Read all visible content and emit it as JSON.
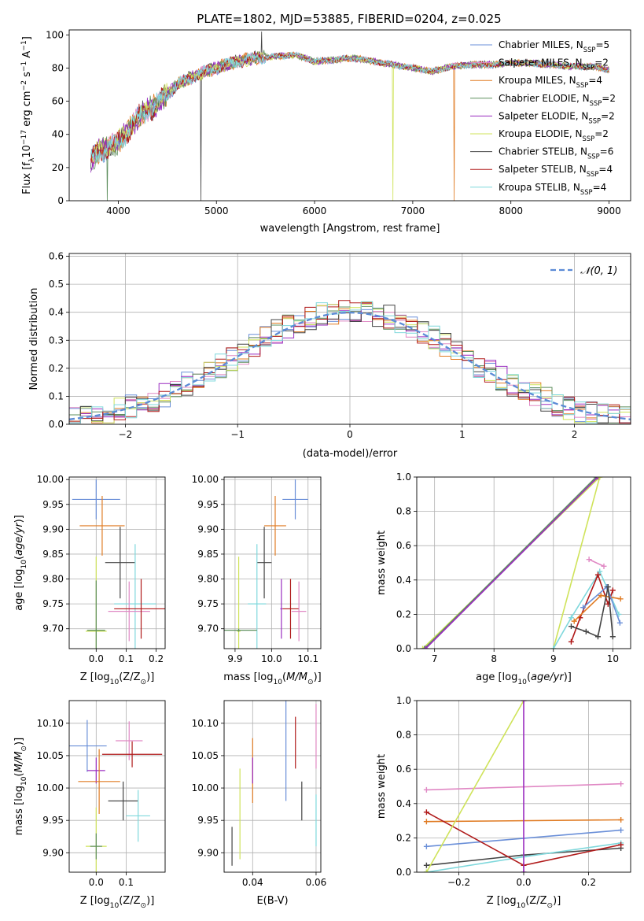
{
  "figure_title": "PLATE=1802, MJD=53885, FIBERID=0204, z=0.025",
  "models": [
    {
      "name": "Chabrier MILES",
      "nssp": "5",
      "color": "#6a8fd8"
    },
    {
      "name": "Salpeter MILES",
      "nssp": "2",
      "color": "#e088c4"
    },
    {
      "name": "Kroupa MILES",
      "nssp": "4",
      "color": "#e07b23"
    },
    {
      "name": "Chabrier ELODIE",
      "nssp": "2",
      "color": "#5e8f5e"
    },
    {
      "name": "Salpeter ELODIE",
      "nssp": "2",
      "color": "#9a2cc0"
    },
    {
      "name": "Kroupa ELODIE",
      "nssp": "2",
      "color": "#cfe35a"
    },
    {
      "name": "Chabrier STELIB",
      "nssp": "6",
      "color": "#444444"
    },
    {
      "name": "Salpeter STELIB",
      "nssp": "4",
      "color": "#b01a1a"
    },
    {
      "name": "Kroupa STELIB",
      "nssp": "4",
      "color": "#7fd8dc"
    }
  ],
  "chart_data": [
    {
      "id": "spectrum",
      "type": "line",
      "xlabel": "wavelength [Angstrom, rest frame]",
      "ylabel": "Flux [f_λ10^-17 erg cm^-2 s^-1 A^-1]",
      "xlim": [
        3500,
        9220
      ],
      "ylim": [
        0,
        103
      ],
      "xticks": [
        4000,
        5000,
        6000,
        7000,
        8000,
        9000
      ],
      "yticks": [
        0,
        20,
        40,
        60,
        80,
        100
      ],
      "continuum": {
        "x": [
          3700,
          3800,
          3900,
          4000,
          4100,
          4200,
          4300,
          4400,
          4500,
          4600,
          4800,
          5000,
          5200,
          5400,
          5600,
          5800,
          6000,
          6200,
          6400,
          6600,
          6800,
          7000,
          7200,
          7400,
          7600,
          7800,
          8000,
          8200,
          8400,
          8600,
          8800,
          9000
        ],
        "y": [
          22,
          30,
          32,
          35,
          42,
          50,
          55,
          58,
          64,
          70,
          76,
          80,
          84,
          86,
          87,
          88,
          84,
          85,
          86,
          84,
          82,
          80,
          78,
          81,
          82,
          82,
          83,
          83,
          82,
          81,
          81,
          79
        ]
      },
      "spikes": [
        {
          "x": 3890,
          "y": 0
        },
        {
          "x": 4840,
          "y": 0
        },
        {
          "x": 5460,
          "y": 102
        },
        {
          "x": 6800,
          "y": 0
        },
        {
          "x": 7420,
          "y": 0
        }
      ],
      "legend": "upper-right"
    },
    {
      "id": "residuals",
      "type": "histogram",
      "xlabel": "(data-model)/error",
      "ylabel": "Normed distribution",
      "xlim": [
        -2.5,
        2.5
      ],
      "ylim": [
        0,
        0.61
      ],
      "xticks": [
        -2,
        -1,
        0,
        1,
        2
      ],
      "yticks": [
        0,
        0.1,
        0.2,
        0.3,
        0.4,
        0.5,
        0.6
      ],
      "bin_width": 0.1,
      "reference_label": "𝒩(0, 1)",
      "grid": true
    },
    {
      "id": "age-vs-Z",
      "type": "scatter",
      "xlabel": "Z [log10(Z/Z⊙)]",
      "ylabel": "age [log10(age/yr)]",
      "xlim": [
        -0.09,
        0.23
      ],
      "ylim": [
        9.66,
        10.005
      ],
      "xticks": [
        0.0,
        0.1,
        0.2
      ],
      "yticks": [
        9.7,
        9.75,
        9.8,
        9.85,
        9.9,
        9.95,
        10.0
      ],
      "points": [
        {
          "model": 0,
          "x": 0.0,
          "y": 9.96,
          "xerr": 0.08,
          "yerr": 0.04
        },
        {
          "model": 2,
          "x": 0.02,
          "y": 9.907,
          "xerr": 0.075,
          "yerr": 0.06
        },
        {
          "model": 6,
          "x": 0.08,
          "y": 9.833,
          "xerr": 0.05,
          "yerr": 0.072
        },
        {
          "model": 8,
          "x": 0.13,
          "y": 9.75,
          "xerr": 0.07,
          "yerr": 0.12
        },
        {
          "model": 1,
          "x": 0.11,
          "y": 9.735,
          "xerr": 0.07,
          "yerr": 0.06
        },
        {
          "model": 7,
          "x": 0.15,
          "y": 9.74,
          "xerr": 0.09,
          "yerr": 0.06
        },
        {
          "model": 5,
          "x": 0.0,
          "y": 9.695,
          "xerr": 0.035,
          "yerr": 0.15
        },
        {
          "model": 3,
          "x": 0.0,
          "y": 9.697,
          "xerr": 0.03,
          "yerr": 0.1
        }
      ]
    },
    {
      "id": "age-vs-mass",
      "type": "scatter",
      "xlabel": "mass [log10(M/M⊙)]",
      "ylabel": "",
      "xlim": [
        9.87,
        10.135
      ],
      "ylim": [
        9.66,
        10.005
      ],
      "xticks": [
        9.9,
        10.0,
        10.1
      ],
      "yticks": [
        9.7,
        9.75,
        9.8,
        9.85,
        9.9,
        9.95,
        10.0
      ],
      "points": [
        {
          "model": 0,
          "x": 10.065,
          "y": 9.96,
          "xerr": 0.035,
          "yerr": 0.04
        },
        {
          "model": 2,
          "x": 10.01,
          "y": 9.907,
          "xerr": 0.03,
          "yerr": 0.06
        },
        {
          "model": 6,
          "x": 9.98,
          "y": 9.833,
          "xerr": 0.02,
          "yerr": 0.072
        },
        {
          "model": 8,
          "x": 9.96,
          "y": 9.75,
          "xerr": 0.025,
          "yerr": 0.12
        },
        {
          "model": 1,
          "x": 10.075,
          "y": 9.735,
          "xerr": 0.02,
          "yerr": 0.06
        },
        {
          "model": 7,
          "x": 10.052,
          "y": 9.74,
          "xerr": 0.022,
          "yerr": 0.06
        },
        {
          "model": 4,
          "x": 10.027,
          "y": 9.74,
          "xerr": 0.003,
          "yerr": 0.06
        },
        {
          "model": 5,
          "x": 9.91,
          "y": 9.695,
          "xerr": 0.005,
          "yerr": 0.15
        },
        {
          "model": 3,
          "x": 9.91,
          "y": 9.697,
          "xerr": 0.05,
          "yerr": 0.003
        }
      ]
    },
    {
      "id": "mass-weight-vs-age",
      "type": "line",
      "xlabel": "age [log10(age/yr)]",
      "ylabel": "mass weight",
      "xlim": [
        6.7,
        10.3
      ],
      "ylim": [
        0,
        1.0
      ],
      "xticks": [
        7,
        8,
        9,
        10
      ],
      "yticks": [
        0,
        0.2,
        0.4,
        0.6,
        0.8,
        1.0
      ],
      "series": [
        {
          "model": 5,
          "x": [
            6.8,
            9.78
          ],
          "y": [
            0,
            1.0
          ]
        },
        {
          "model": 3,
          "x": [
            6.83,
            9.72
          ],
          "y": [
            0,
            1.0
          ]
        },
        {
          "model": 4,
          "x": [
            6.85,
            9.75
          ],
          "y": [
            0,
            1.0
          ]
        },
        {
          "model": 5,
          "x": [
            9.0,
            9.78
          ],
          "y": [
            0,
            1.0
          ]
        },
        {
          "model": 1,
          "x": [
            9.6,
            9.85
          ],
          "y": [
            0.52,
            0.48
          ]
        },
        {
          "model": 8,
          "x": [
            9.0,
            9.3,
            9.78,
            10.1
          ],
          "y": [
            0.0,
            0.18,
            0.45,
            0.2
          ]
        },
        {
          "model": 7,
          "x": [
            9.3,
            9.45,
            9.75,
            9.92,
            10.0
          ],
          "y": [
            0.04,
            0.18,
            0.43,
            0.26,
            0.34
          ]
        },
        {
          "model": 2,
          "x": [
            9.35,
            9.8,
            10.13
          ],
          "y": [
            0.16,
            0.31,
            0.29
          ]
        },
        {
          "model": 0,
          "x": [
            9.5,
            9.9,
            10.12
          ],
          "y": [
            0.24,
            0.36,
            0.15
          ]
        },
        {
          "model": 6,
          "x": [
            9.3,
            9.55,
            9.75,
            9.92,
            10.0
          ],
          "y": [
            0.13,
            0.1,
            0.07,
            0.36,
            0.07
          ]
        }
      ]
    },
    {
      "id": "mass-vs-Z",
      "type": "scatter",
      "xlabel": "Z [log10(Z/Z⊙)]",
      "ylabel": "mass [log10(M/M⊙)]",
      "xlim": [
        -0.09,
        0.23
      ],
      "ylim": [
        9.87,
        10.135
      ],
      "xticks": [
        0.0,
        0.1
      ],
      "yticks": [
        9.9,
        9.95,
        10.0,
        10.05,
        10.1
      ],
      "points": [
        {
          "model": 0,
          "x": -0.03,
          "y": 10.065,
          "xerr": 0.065,
          "yerr": 0.04
        },
        {
          "model": 1,
          "x": 0.11,
          "y": 10.073,
          "xerr": 0.045,
          "yerr": 0.03
        },
        {
          "model": 4,
          "x": 0.0,
          "y": 10.027,
          "xerr": 0.03,
          "yerr": 0.02
        },
        {
          "model": 7,
          "x": 0.12,
          "y": 10.052,
          "xerr": 0.1,
          "yerr": 0.02
        },
        {
          "model": 2,
          "x": 0.01,
          "y": 10.01,
          "xerr": 0.07,
          "yerr": 0.05
        },
        {
          "model": 6,
          "x": 0.09,
          "y": 9.98,
          "xerr": 0.05,
          "yerr": 0.03
        },
        {
          "model": 8,
          "x": 0.14,
          "y": 9.957,
          "xerr": 0.04,
          "yerr": 0.04
        },
        {
          "model": 5,
          "x": 0.0,
          "y": 9.91,
          "xerr": 0.035,
          "yerr": 0.06
        },
        {
          "model": 3,
          "x": 0.0,
          "y": 9.91,
          "xerr": 0.02,
          "yerr": 0.02
        }
      ]
    },
    {
      "id": "mass-vs-EBV",
      "type": "scatter",
      "xlabel": "E(B-V)",
      "ylabel": "",
      "xlim": [
        0.031,
        0.0615
      ],
      "ylim": [
        9.87,
        10.135
      ],
      "xticks": [
        0.04,
        0.06
      ],
      "yticks": [
        9.9,
        9.95,
        10.0,
        10.05,
        10.1
      ],
      "points": [
        {
          "model": 6,
          "x": 0.0335,
          "y": 9.91,
          "xerr": 0,
          "yerr": 0.03
        },
        {
          "model": 5,
          "x": 0.036,
          "y": 9.96,
          "xerr": 0,
          "yerr": 0.07
        },
        {
          "model": 2,
          "x": 0.04,
          "y": 10.027,
          "xerr": 0,
          "yerr": 0.05
        },
        {
          "model": 4,
          "x": 0.04,
          "y": 10.027,
          "xerr": 0,
          "yerr": 0.02
        },
        {
          "model": 0,
          "x": 0.0505,
          "y": 10.06,
          "xerr": 0,
          "yerr": 0.08
        },
        {
          "model": 7,
          "x": 0.0535,
          "y": 10.07,
          "xerr": 0,
          "yerr": 0.04
        },
        {
          "model": 6,
          "x": 0.0555,
          "y": 9.98,
          "xerr": 0,
          "yerr": 0.03
        },
        {
          "model": 1,
          "x": 0.06,
          "y": 10.08,
          "xerr": 0,
          "yerr": 0.05
        },
        {
          "model": 8,
          "x": 0.06,
          "y": 9.95,
          "xerr": 0,
          "yerr": 0.04
        }
      ]
    },
    {
      "id": "mass-weight-vs-Z",
      "type": "line",
      "xlabel": "Z [log10(Z/Z⊙)]",
      "ylabel": "mass weight",
      "xlim": [
        -0.33,
        0.33
      ],
      "ylim": [
        0,
        1.0
      ],
      "xticks": [
        -0.2,
        0.0,
        0.2
      ],
      "yticks": [
        0,
        0.2,
        0.4,
        0.6,
        0.8,
        1.0
      ],
      "series": [
        {
          "model": 1,
          "x": [
            -0.3,
            0.3
          ],
          "y": [
            0.48,
            0.515
          ]
        },
        {
          "model": 2,
          "x": [
            -0.3,
            0.3
          ],
          "y": [
            0.295,
            0.305
          ]
        },
        {
          "model": 0,
          "x": [
            -0.3,
            0.3
          ],
          "y": [
            0.15,
            0.245
          ]
        },
        {
          "model": 6,
          "x": [
            -0.3,
            0.0,
            0.3
          ],
          "y": [
            0.04,
            0.1,
            0.14
          ]
        },
        {
          "model": 8,
          "x": [
            -0.3,
            0.0,
            0.3
          ],
          "y": [
            0.0,
            0.09,
            0.17
          ]
        },
        {
          "model": 7,
          "x": [
            -0.3,
            0.0,
            0.3
          ],
          "y": [
            0.35,
            0.04,
            0.16
          ]
        },
        {
          "model": 5,
          "x": [
            -0.3,
            0.0
          ],
          "y": [
            0.0,
            1.0
          ]
        },
        {
          "model": 4,
          "x": [
            0.0,
            0.0
          ],
          "y": [
            0.0,
            1.0
          ]
        }
      ]
    }
  ]
}
